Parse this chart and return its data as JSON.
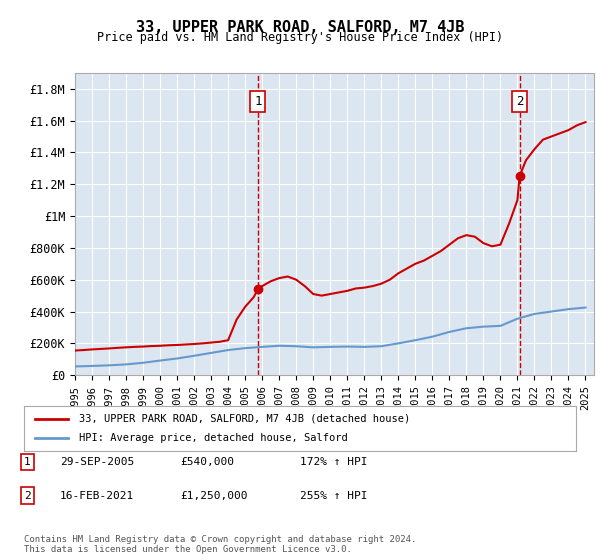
{
  "title": "33, UPPER PARK ROAD, SALFORD, M7 4JB",
  "subtitle": "Price paid vs. HM Land Registry's House Price Index (HPI)",
  "background_color": "#dce6f1",
  "plot_bg_color": "#dce6f1",
  "y_ticks": [
    0,
    200000,
    400000,
    600000,
    800000,
    1000000,
    1200000,
    1400000,
    1600000,
    1800000
  ],
  "y_tick_labels": [
    "£0",
    "£200K",
    "£400K",
    "£600K",
    "£800K",
    "£1M",
    "£1.2M",
    "£1.4M",
    "£1.6M",
    "£1.8M"
  ],
  "ylim": [
    0,
    1900000
  ],
  "xlim_start": 1995.0,
  "xlim_end": 2025.5,
  "sale1_date": 2005.75,
  "sale1_price": 540000,
  "sale1_label": "1",
  "sale2_date": 2021.125,
  "sale2_price": 1250000,
  "sale2_label": "2",
  "legend_line1": "33, UPPER PARK ROAD, SALFORD, M7 4JB (detached house)",
  "legend_line2": "HPI: Average price, detached house, Salford",
  "annotation1": "1    29-SEP-2005    £540,000    172% ↑ HPI",
  "annotation2": "2    16-FEB-2021    £1,250,000    255% ↑ HPI",
  "footer": "Contains HM Land Registry data © Crown copyright and database right 2024.\nThis data is licensed under the Open Government Licence v3.0.",
  "line_color_red": "#cc0000",
  "line_color_blue": "#6699cc",
  "grid_color": "#ffffff",
  "x_years": [
    1995,
    1996,
    1997,
    1998,
    1999,
    2000,
    2001,
    2002,
    2003,
    2004,
    2005,
    2006,
    2007,
    2008,
    2009,
    2010,
    2011,
    2012,
    2013,
    2014,
    2015,
    2016,
    2017,
    2018,
    2019,
    2020,
    2021,
    2022,
    2023,
    2024,
    2025
  ],
  "hpi_values": [
    55000,
    58000,
    62000,
    68000,
    78000,
    92000,
    105000,
    122000,
    140000,
    158000,
    170000,
    178000,
    185000,
    182000,
    175000,
    178000,
    180000,
    178000,
    182000,
    200000,
    220000,
    242000,
    272000,
    295000,
    305000,
    310000,
    355000,
    385000,
    400000,
    415000,
    425000
  ],
  "property_values_x": [
    1995.0,
    1995.5,
    1996.0,
    1996.5,
    1997.0,
    1997.5,
    1998.0,
    1998.5,
    1999.0,
    1999.5,
    2000.0,
    2000.5,
    2001.0,
    2001.5,
    2002.0,
    2002.5,
    2003.0,
    2003.5,
    2004.0,
    2004.5,
    2005.0,
    2005.5,
    2005.75,
    2006.0,
    2006.5,
    2007.0,
    2007.5,
    2008.0,
    2008.5,
    2009.0,
    2009.5,
    2010.0,
    2010.5,
    2011.0,
    2011.5,
    2012.0,
    2012.5,
    2013.0,
    2013.5,
    2014.0,
    2014.5,
    2015.0,
    2015.5,
    2016.0,
    2016.5,
    2017.0,
    2017.5,
    2018.0,
    2018.5,
    2019.0,
    2019.5,
    2020.0,
    2020.5,
    2021.0,
    2021.125,
    2021.5,
    2022.0,
    2022.5,
    2023.0,
    2023.5,
    2024.0,
    2024.5,
    2025.0
  ],
  "property_values_y": [
    155000,
    158000,
    162000,
    165000,
    168000,
    172000,
    175000,
    178000,
    180000,
    183000,
    185000,
    188000,
    190000,
    193000,
    196000,
    200000,
    205000,
    210000,
    220000,
    350000,
    430000,
    490000,
    540000,
    560000,
    590000,
    610000,
    620000,
    600000,
    560000,
    510000,
    500000,
    510000,
    520000,
    530000,
    545000,
    550000,
    560000,
    575000,
    600000,
    640000,
    670000,
    700000,
    720000,
    750000,
    780000,
    820000,
    860000,
    880000,
    870000,
    830000,
    810000,
    820000,
    950000,
    1100000,
    1250000,
    1350000,
    1420000,
    1480000,
    1500000,
    1520000,
    1540000,
    1570000,
    1590000
  ]
}
